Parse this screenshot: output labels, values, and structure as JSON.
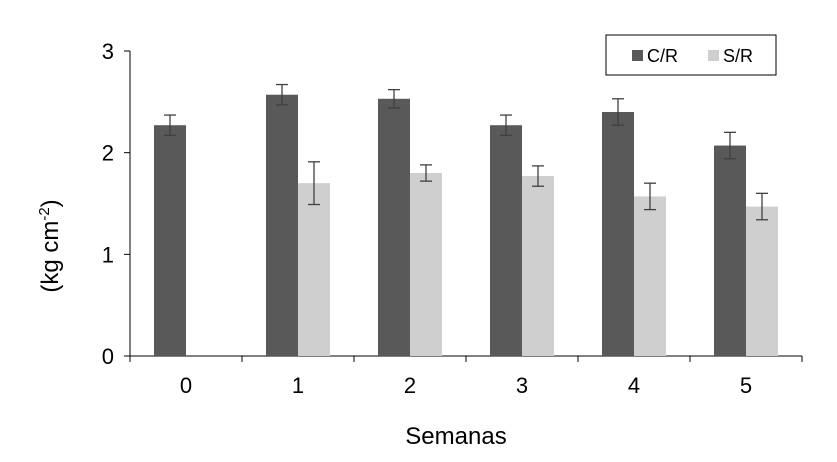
{
  "chart_data": {
    "type": "bar",
    "categories": [
      "0",
      "1",
      "2",
      "3",
      "4",
      "5"
    ],
    "series": [
      {
        "name": "C/R",
        "color": "#595959",
        "values": [
          2.27,
          2.57,
          2.53,
          2.27,
          2.4,
          2.07
        ],
        "errors": [
          0.1,
          0.1,
          0.09,
          0.1,
          0.13,
          0.13
        ]
      },
      {
        "name": "S/R",
        "color": "#d0cfd0",
        "values": [
          null,
          1.7,
          1.8,
          1.77,
          1.57,
          1.47
        ],
        "errors": [
          null,
          0.21,
          0.08,
          0.1,
          0.13,
          0.13
        ]
      }
    ],
    "xlabel": "Semanas",
    "ylabel": "(kg cm-2)",
    "ylabel_main": "(kg cm",
    "ylabel_sup": "-2",
    "ylabel_end": ")",
    "ylim": [
      0,
      3
    ],
    "yticks": [
      "0",
      "1",
      "2",
      "3"
    ],
    "grid": false,
    "legend_position": "top-right"
  }
}
